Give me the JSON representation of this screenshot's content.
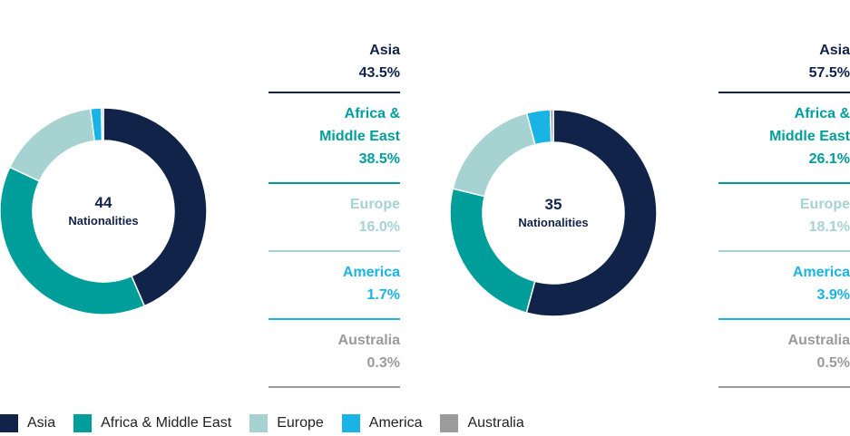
{
  "colors": {
    "asia": "#12234a",
    "africa_middle_east": "#009e9b",
    "europe": "#a6d3d2",
    "america": "#1ab4e4",
    "australia": "#9b9b9b"
  },
  "chart_data": [
    {
      "type": "pie",
      "center_value": "44",
      "center_label": "Nationalities",
      "categories": [
        "Asia",
        "Africa & Middle East",
        "Europe",
        "America",
        "Australia"
      ],
      "values": [
        43.5,
        38.5,
        16.0,
        1.7,
        0.3
      ],
      "value_labels": [
        "43.5%",
        "38.5%",
        "16.0%",
        "1.7%",
        "0.3%"
      ],
      "breakdown_labels": [
        [
          "Asia"
        ],
        [
          "Africa &",
          "Middle East"
        ],
        [
          "Europe"
        ],
        [
          "America"
        ],
        [
          "Australia"
        ]
      ]
    },
    {
      "type": "pie",
      "center_value": "35",
      "center_label": "Nationalities",
      "categories": [
        "Asia",
        "Africa & Middle East",
        "Europe",
        "America",
        "Australia"
      ],
      "values": [
        57.5,
        26.1,
        18.1,
        3.9,
        0.5
      ],
      "value_labels": [
        "57.5%",
        "26.1%",
        "18.1%",
        "3.9%",
        "0.5%"
      ],
      "breakdown_labels": [
        [
          "Asia"
        ],
        [
          "Africa &",
          "Middle East"
        ],
        [
          "Europe"
        ],
        [
          "America"
        ],
        [
          "Australia"
        ]
      ]
    }
  ],
  "legend": [
    {
      "label": "Asia",
      "color": "#12234a"
    },
    {
      "label": "Africa & Middle East",
      "color": "#009e9b"
    },
    {
      "label": "Europe",
      "color": "#a6d3d2"
    },
    {
      "label": "America",
      "color": "#1ab4e4"
    },
    {
      "label": "Australia",
      "color": "#9b9b9b"
    }
  ]
}
